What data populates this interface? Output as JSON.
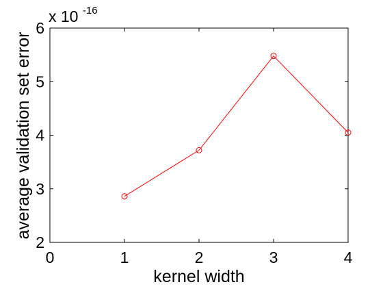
{
  "chart_data": {
    "type": "line",
    "title": "",
    "xlabel": "kernel width",
    "ylabel": "average validation set error",
    "y_scale_label": "x 10",
    "y_scale_exponent": "-16",
    "xlim": [
      0,
      4
    ],
    "ylim": [
      2,
      6
    ],
    "xticks": [
      0,
      1,
      2,
      3,
      4
    ],
    "yticks": [
      2,
      3,
      4,
      5,
      6
    ],
    "xtick_labels": [
      "0",
      "1",
      "2",
      "3",
      "4"
    ],
    "ytick_labels": [
      "2",
      "3",
      "4",
      "5",
      "6"
    ],
    "grid": false,
    "legend": false,
    "series": [
      {
        "x": [
          1,
          2,
          3,
          4
        ],
        "y": [
          2.86,
          3.72,
          5.48,
          4.05
        ],
        "color": "#ff0000",
        "marker": "circle"
      }
    ]
  }
}
